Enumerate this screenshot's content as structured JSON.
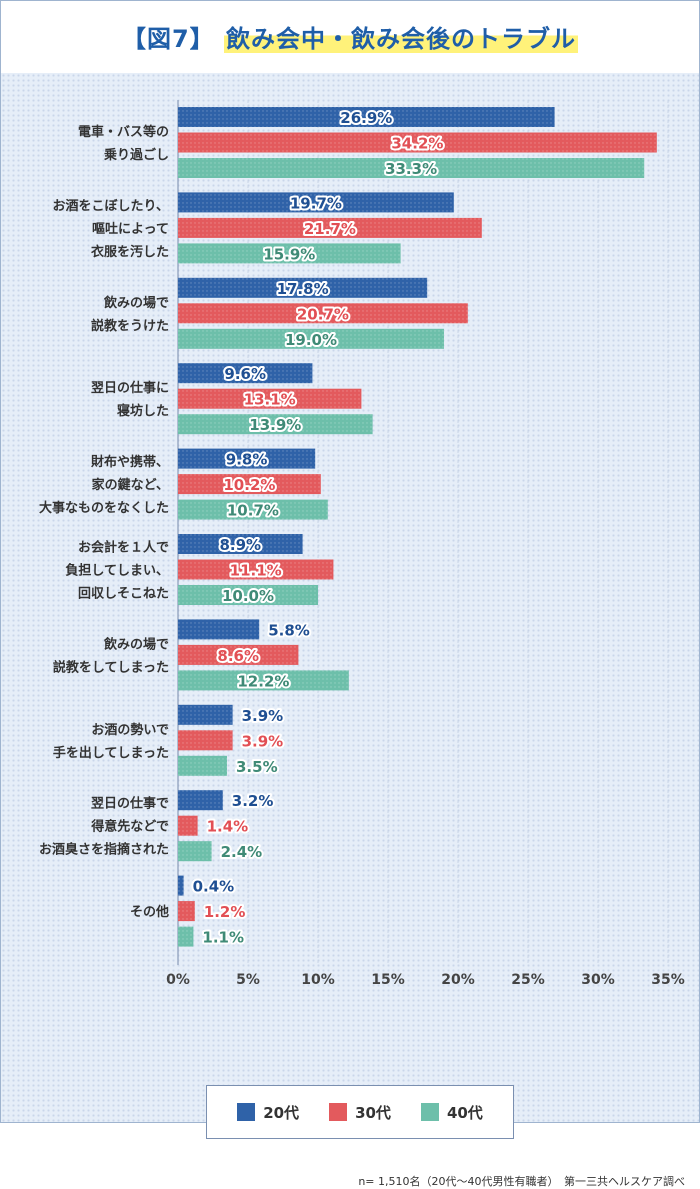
{
  "header": {
    "bracket": "【図7】",
    "title": "飲み会中・飲み会後のトラブル"
  },
  "colors": {
    "s20": "#2f62a8",
    "s30": "#e35a5d",
    "s40": "#6dbfaa",
    "label20": "#1f4f92",
    "label30": "#e24f54",
    "label40": "#3f8a76",
    "grid": "#c8d4e6"
  },
  "chart_data": {
    "type": "bar",
    "orientation": "horizontal",
    "categories": [
      [
        "電車・バス等の",
        "乗り過ごし"
      ],
      [
        "お酒をこぼしたり、",
        "嘔吐によって",
        "衣服を汚した"
      ],
      [
        "飲みの場で",
        "説教をうけた"
      ],
      [
        "翌日の仕事に",
        "寝坊した"
      ],
      [
        "財布や携帯、",
        "家の鍵など、",
        "大事なものをなくした"
      ],
      [
        "お会計を１人で",
        "負担してしまい、",
        "回収しそこねた"
      ],
      [
        "飲みの場で",
        "説教をしてしまった"
      ],
      [
        "お酒の勢いで",
        "手を出してしまった"
      ],
      [
        "翌日の仕事で",
        "得意先などで",
        "お酒臭さを指摘された"
      ],
      [
        "その他"
      ]
    ],
    "series": [
      {
        "name": "20代",
        "values": [
          26.9,
          19.7,
          17.8,
          9.6,
          9.8,
          8.9,
          5.8,
          3.9,
          3.2,
          0.4
        ]
      },
      {
        "name": "30代",
        "values": [
          34.2,
          21.7,
          20.7,
          13.1,
          10.2,
          11.1,
          8.6,
          3.9,
          1.4,
          1.2
        ]
      },
      {
        "name": "40代",
        "values": [
          33.3,
          15.9,
          19.0,
          13.9,
          10.7,
          10.0,
          12.2,
          3.5,
          2.4,
          1.1
        ]
      }
    ],
    "value_suffix": "%",
    "xlim": [
      0,
      35
    ],
    "xticks": [
      "0%",
      "5%",
      "10%",
      "15%",
      "20%",
      "25%",
      "30%",
      "35%"
    ],
    "grid": true,
    "legend_position": "bottom"
  },
  "footnote": "n= 1,510名（20代〜40代男性有職者）　第一三共ヘルスケア調べ"
}
